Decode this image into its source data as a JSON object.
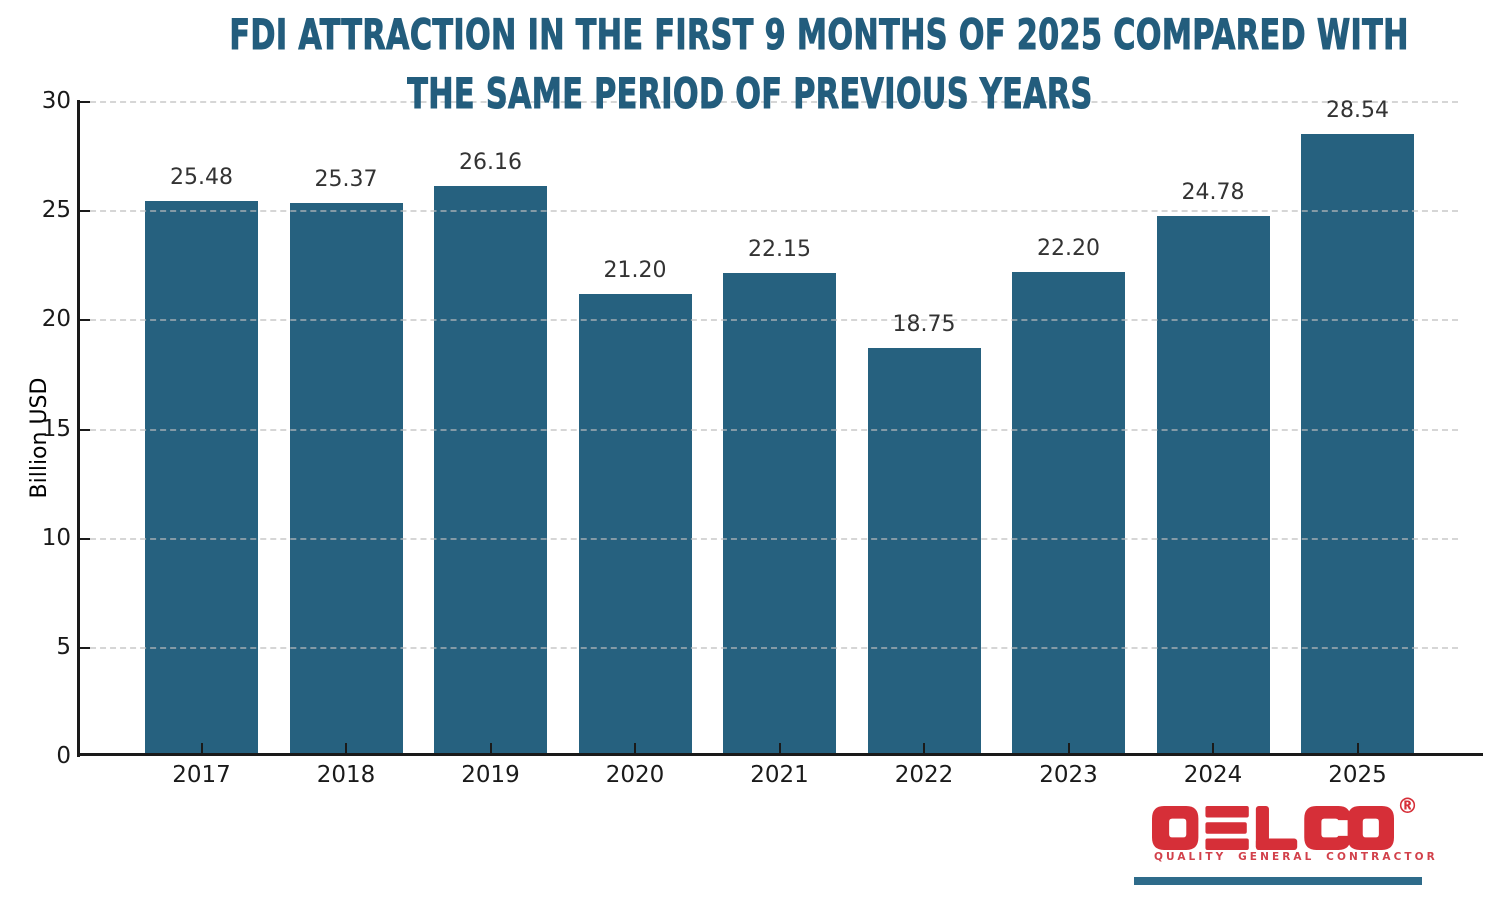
{
  "title": {
    "line1": "FDI ATTRACTION IN THE FIRST 9 MONTHS OF 2025 COMPARED WITH",
    "line2": "THE SAME PERIOD OF PREVIOUS YEARS"
  },
  "chart_data": {
    "type": "bar",
    "title": "FDI ATTRACTION IN THE FIRST 9 MONTHS OF 2025 COMPARED WITH THE SAME PERIOD OF PREVIOUS YEARS",
    "categories": [
      "2017",
      "2018",
      "2019",
      "2020",
      "2021",
      "2022",
      "2023",
      "2024",
      "2025"
    ],
    "values": [
      25.48,
      25.37,
      26.16,
      21.2,
      22.15,
      18.75,
      22.2,
      24.78,
      28.54
    ],
    "value_labels": [
      "25.48",
      "25.37",
      "26.16",
      "21.20",
      "22.15",
      "18.75",
      "22.20",
      "24.78",
      "28.54"
    ],
    "xlabel": "",
    "ylabel": "Billion USD",
    "ylim": [
      0,
      30
    ],
    "yticks": [
      0,
      5,
      10,
      15,
      20,
      25,
      30
    ],
    "grid": "horizontal dashed gridlines at each y tick, drawn over bars",
    "legend": "none",
    "bar_color": "#26617f"
  },
  "logo": {
    "brand": "DELCO",
    "registered": "®",
    "tagline": "QUALITY GENERAL CONTRACTOR"
  },
  "colors": {
    "bar": "#26617f",
    "title": "#235d7d",
    "axis": "#1a1a1a",
    "grid": "#bebebe",
    "value_label": "#333333",
    "tick_label": "#1a1a1a",
    "brand_red": "#d62f38",
    "tagline_red": "#d2414b",
    "underline_teal": "#2e6b8a",
    "background": "#ffffff"
  }
}
